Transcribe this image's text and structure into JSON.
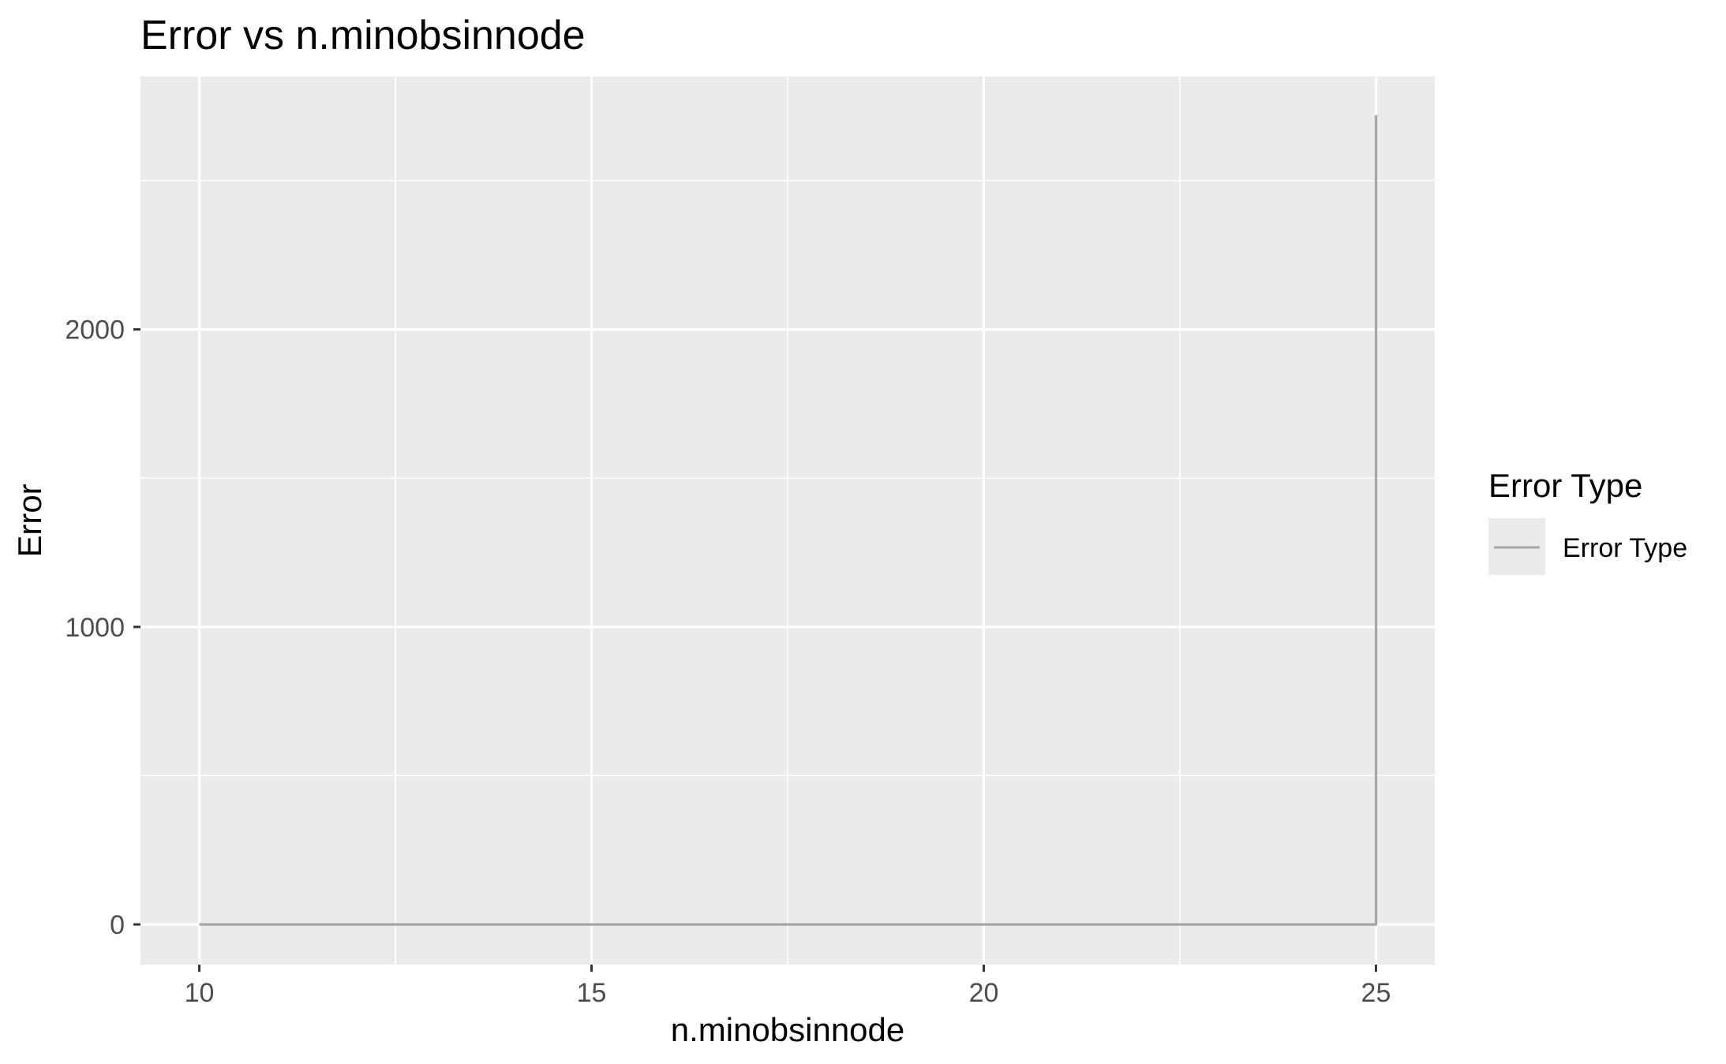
{
  "chart_data": {
    "type": "line",
    "title": "Error vs n.minobsinnode",
    "xlabel": "n.minobsinnode",
    "ylabel": "Error",
    "xlim": [
      9.25,
      25.75
    ],
    "ylim": [
      -135,
      2850
    ],
    "x_ticks": [
      10,
      15,
      20,
      25
    ],
    "x_minor_ticks": [
      12.5,
      17.5,
      22.5
    ],
    "y_ticks": [
      0,
      1000,
      2000
    ],
    "y_minor_ticks": [
      500,
      1500,
      2500
    ],
    "grid": true,
    "legend": {
      "title": "Error Type",
      "position": "right",
      "entries": [
        "Error Type"
      ]
    },
    "colors": {
      "panel_background": "#ebebeb",
      "grid": "#ffffff",
      "series": "#a6a6a6"
    },
    "series": [
      {
        "name": "Error Type",
        "color": "#a6a6a6",
        "x": [
          10,
          11,
          12,
          13,
          14,
          15,
          16,
          17,
          18,
          19,
          20,
          21,
          22,
          23,
          24,
          25,
          25
        ],
        "y": [
          0,
          0,
          0,
          0,
          0,
          0,
          0,
          0,
          0,
          0,
          0,
          0,
          0,
          0,
          0,
          0,
          2720
        ]
      }
    ]
  }
}
